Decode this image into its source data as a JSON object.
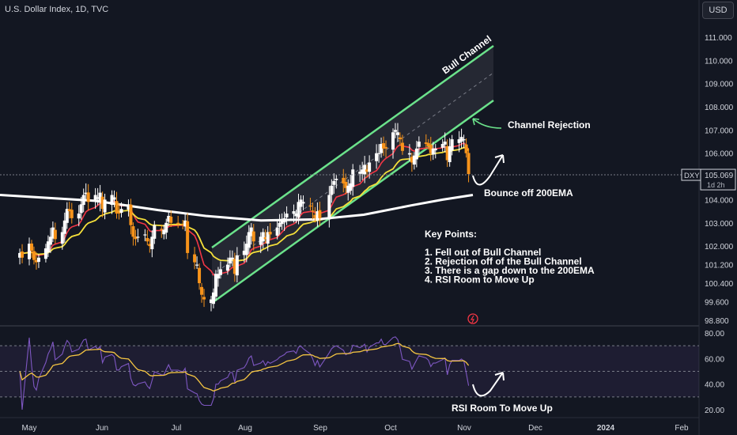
{
  "header": {
    "title": "U.S. Dollar Index, 1D, TVC",
    "currency": "USD"
  },
  "price_axis": {
    "ticks": [
      "111.000",
      "110.000",
      "109.000",
      "108.000",
      "107.000",
      "106.000",
      "104.000",
      "103.000",
      "102.000",
      "101.200",
      "100.400",
      "99.600",
      "98.800"
    ],
    "symbol_tag": "DXY",
    "last_price": "105.069",
    "countdown": "1d 2h"
  },
  "rsi_axis": {
    "ticks": [
      "80.00",
      "60.00",
      "40.00",
      "20.00"
    ]
  },
  "time_axis": {
    "labels": [
      "May",
      "Jun",
      "Jul",
      "Aug",
      "Sep",
      "Oct",
      "Nov",
      "Dec",
      "2024",
      "Feb"
    ]
  },
  "annotations": {
    "bull_channel": "Bull Channel",
    "channel_rejection": "Channel Rejection",
    "bounce": "Bounce off 200EMA",
    "key_points_title": "Key Points:",
    "key_points": [
      "1. Fell out of Bull Channel",
      "2. Rejection off of the Bull Channel",
      "3. There is a gap down to the 200EMA",
      "4. RSI Room to Move Up"
    ],
    "rsi_note": "RSI Room To Move Up"
  },
  "colors": {
    "background": "#131722",
    "up_candle": "#ffffff",
    "down_candle": "#f7931a",
    "ema_fast": "#f23645",
    "ema_mid": "#f5e03a",
    "ema_200": "#ffffff",
    "channel": "#6be28b",
    "rsi_line": "#7e57c2",
    "rsi_ma": "#f5c542",
    "grid": "#2a2e39"
  },
  "chart_data": {
    "type": "candlestick",
    "title": "U.S. Dollar Index, 1D, TVC",
    "x": [
      "Apr 27",
      "Apr 28",
      "May 1",
      "May 2",
      "May 3",
      "May 4",
      "May 5",
      "May 8",
      "May 9",
      "May 10",
      "May 11",
      "May 12",
      "May 15",
      "May 16",
      "May 17",
      "May 18",
      "May 19",
      "May 22",
      "May 23",
      "May 24",
      "May 25",
      "May 26",
      "May 29",
      "May 30",
      "May 31",
      "Jun 1",
      "Jun 2",
      "Jun 5",
      "Jun 6",
      "Jun 7",
      "Jun 8",
      "Jun 9",
      "Jun 12",
      "Jun 13",
      "Jun 14",
      "Jun 15",
      "Jun 16",
      "Jun 19",
      "Jun 20",
      "Jun 21",
      "Jun 22",
      "Jun 23",
      "Jun 26",
      "Jun 27",
      "Jun 28",
      "Jun 29",
      "Jun 30",
      "Jul 3",
      "Jul 5",
      "Jul 6",
      "Jul 7",
      "Jul 10",
      "Jul 11",
      "Jul 12",
      "Jul 13",
      "Jul 14",
      "Jul 17",
      "Jul 18",
      "Jul 19",
      "Jul 20",
      "Jul 21",
      "Jul 24",
      "Jul 25",
      "Jul 26",
      "Jul 27",
      "Jul 28",
      "Jul 31",
      "Aug 1",
      "Aug 2",
      "Aug 3",
      "Aug 4",
      "Aug 7",
      "Aug 8",
      "Aug 9",
      "Aug 10",
      "Aug 11",
      "Aug 14",
      "Aug 15",
      "Aug 16",
      "Aug 17",
      "Aug 18",
      "Aug 21",
      "Aug 22",
      "Aug 23",
      "Aug 24",
      "Aug 25",
      "Aug 28",
      "Aug 29",
      "Aug 30",
      "Aug 31",
      "Sep 1",
      "Sep 5",
      "Sep 6",
      "Sep 7",
      "Sep 8",
      "Sep 11",
      "Sep 12",
      "Sep 13",
      "Sep 14",
      "Sep 15",
      "Sep 18",
      "Sep 19",
      "Sep 20",
      "Sep 21",
      "Sep 22",
      "Sep 25",
      "Sep 26",
      "Sep 27",
      "Sep 28",
      "Sep 29",
      "Oct 2",
      "Oct 3",
      "Oct 4",
      "Oct 5",
      "Oct 6",
      "Oct 9",
      "Oct 10",
      "Oct 11",
      "Oct 12",
      "Oct 13",
      "Oct 16",
      "Oct 17",
      "Oct 18",
      "Oct 19",
      "Oct 20",
      "Oct 23",
      "Oct 24",
      "Oct 25",
      "Oct 26",
      "Oct 27",
      "Oct 30",
      "Oct 31",
      "Nov 1",
      "Nov 2",
      "Nov 3"
    ],
    "close": [
      101.7,
      101.5,
      102.1,
      101.8,
      101.4,
      101.3,
      101.5,
      101.9,
      102.2,
      102.4,
      102.8,
      102.3,
      102.6,
      103.1,
      103.6,
      103.5,
      103.2,
      103.4,
      103.8,
      104.2,
      104.3,
      103.9,
      104.2,
      104.1,
      104.3,
      103.6,
      104.0,
      104.2,
      104.1,
      103.4,
      103.4,
      103.6,
      103.8,
      102.9,
      102.4,
      102.3,
      102.4,
      102.5,
      102.2,
      102.0,
      102.4,
      102.9,
      102.7,
      102.7,
      103.0,
      103.3,
      103.0,
      103.0,
      102.9,
      103.1,
      101.7,
      101.3,
      101.2,
      100.4,
      99.9,
      99.7,
      99.7,
      100.0,
      100.8,
      100.8,
      101.0,
      101.2,
      101.5,
      101.5,
      100.8,
      101.6,
      101.8,
      102.1,
      102.6,
      102.8,
      102.2,
      102.4,
      102.6,
      102.3,
      102.6,
      102.5,
      102.8,
      103.0,
      103.1,
      103.2,
      103.4,
      103.5,
      103.4,
      103.9,
      104.0,
      103.9,
      103.7,
      103.5,
      103.2,
      103.5,
      103.2,
      104.2,
      104.6,
      104.8,
      104.9,
      104.7,
      104.5,
      104.6,
      104.7,
      105.3,
      105.2,
      105.3,
      105.5,
      105.2,
      105.6,
      106.0,
      106.0,
      106.4,
      106.2,
      106.2,
      106.9,
      107.0,
      106.9,
      106.6,
      106.1,
      106.0,
      105.6,
      105.9,
      106.2,
      106.5,
      106.4,
      106.3,
      106.0,
      106.2,
      106.2,
      106.4,
      106.5,
      105.7,
      106.3,
      106.6,
      106.6,
      106.7,
      106.6,
      106.0,
      105.1
    ],
    "ema_200_approx": {
      "from": 104.2,
      "at_jul": 103.3,
      "at_aug": 103.1,
      "at_sep": 103.2,
      "at_oct": 103.8,
      "at_nov": 104.2
    },
    "channel": {
      "lower_start": [
        "Jul 13",
        99.5
      ],
      "lower_end": [
        "Nov 14",
        107.5
      ],
      "width": 2.5
    },
    "rsi": {
      "ylim": [
        15,
        85
      ],
      "bands": [
        70,
        50,
        30
      ],
      "last": 35
    },
    "ylim": [
      98.5,
      111.5
    ],
    "grid": false,
    "series_names": [
      "DXY"
    ]
  }
}
